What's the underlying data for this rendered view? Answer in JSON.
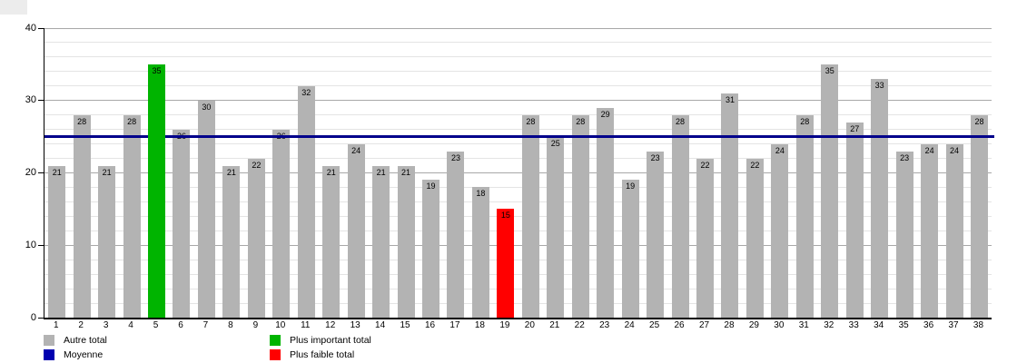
{
  "chart_data": {
    "type": "bar",
    "title": "",
    "xlabel": "",
    "ylabel": "",
    "categories": [
      "1",
      "2",
      "3",
      "4",
      "5",
      "6",
      "7",
      "8",
      "9",
      "10",
      "11",
      "12",
      "13",
      "14",
      "15",
      "16",
      "17",
      "18",
      "19",
      "20",
      "21",
      "22",
      "23",
      "24",
      "25",
      "26",
      "27",
      "28",
      "29",
      "30",
      "31",
      "32",
      "33",
      "34",
      "35",
      "36",
      "37",
      "38"
    ],
    "values": [
      21,
      28,
      21,
      28,
      35,
      26,
      30,
      21,
      22,
      26,
      32,
      21,
      24,
      21,
      21,
      19,
      23,
      18,
      15,
      28,
      25,
      28,
      29,
      19,
      23,
      28,
      22,
      31,
      22,
      24,
      28,
      35,
      27,
      33,
      23,
      24,
      24,
      28
    ],
    "bar_color_default": "#b3b3b3",
    "special_bars": [
      {
        "category": "5",
        "value": 35,
        "color": "#00b400",
        "meaning": "Plus important total"
      },
      {
        "category": "19",
        "value": 15,
        "color": "#ff0000",
        "meaning": "Plus faible total"
      }
    ],
    "moyenne_line": {
      "value": 25,
      "color": "#00008b"
    },
    "ylim": [
      0,
      40
    ],
    "yticks": [
      0,
      10,
      20,
      30,
      40
    ],
    "minor_grid_step": 2,
    "grid": true,
    "legend_position": "bottom",
    "legend_columns": [
      [
        {
          "label": "Autre total",
          "color": "#b3b3b3"
        },
        {
          "label": "Moyenne",
          "color": "#0000b0"
        }
      ],
      [
        {
          "label": "Plus important total",
          "color": "#00b400"
        },
        {
          "label": "Plus faible total",
          "color": "#ff0000"
        }
      ]
    ]
  }
}
